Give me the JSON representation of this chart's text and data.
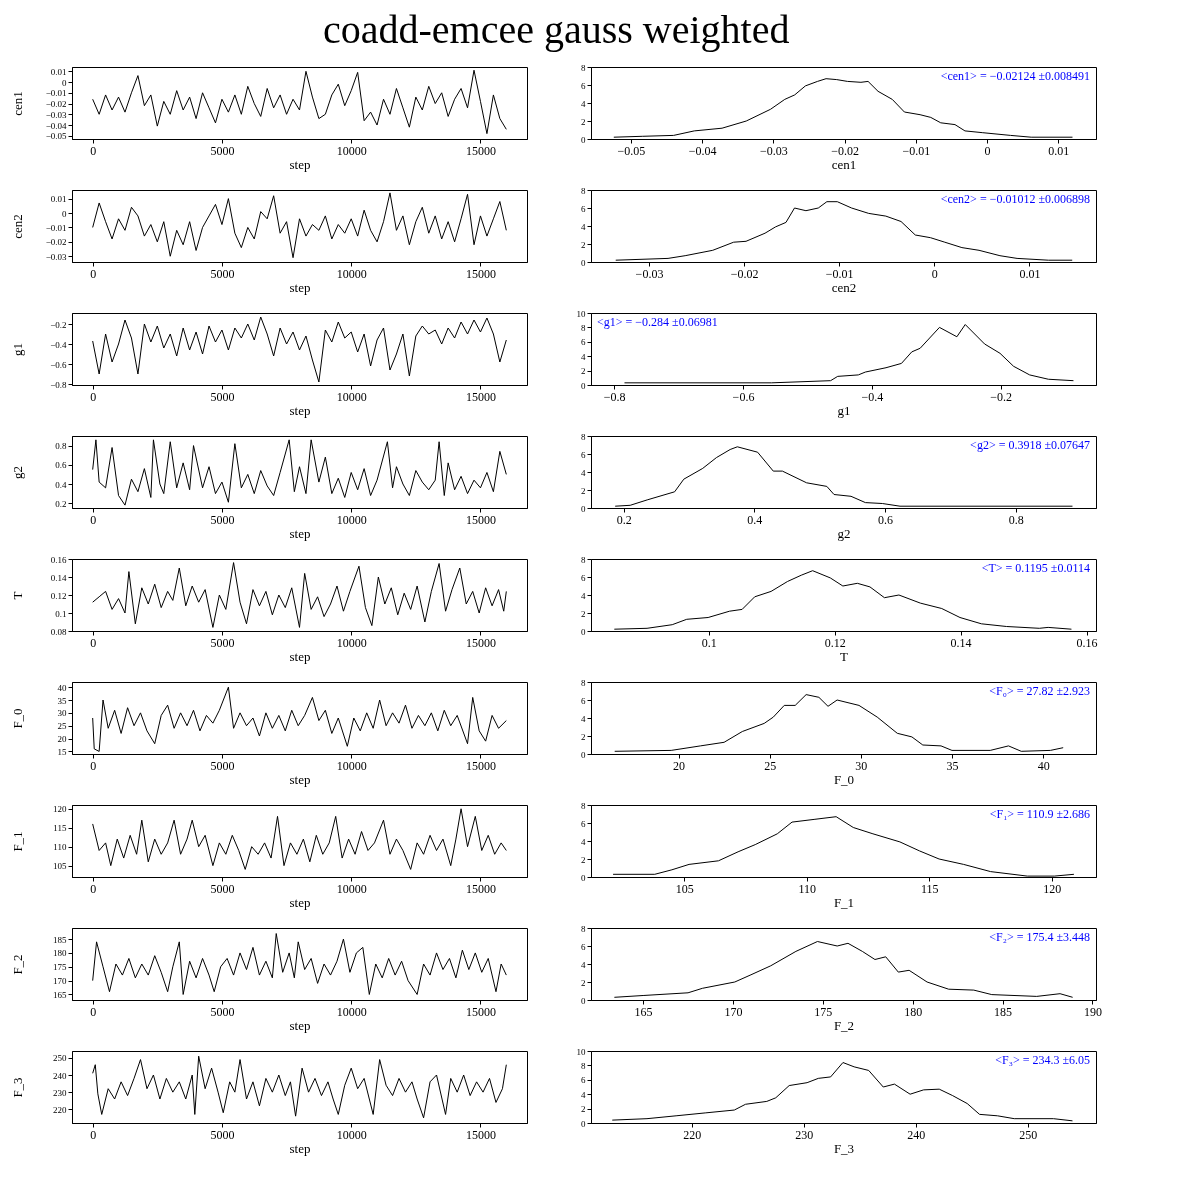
{
  "chart_data": [
    {
      "type": "line",
      "title": "coadd-emcee gauss weighted",
      "xlabel": "step",
      "ylabel": "cen1",
      "color": "#000000",
      "xlim": [
        -800,
        16800
      ],
      "xticks": [
        0,
        5000,
        10000,
        15000
      ],
      "ylim": [
        -0.053,
        0.014
      ],
      "yticks": [
        -0.05,
        -0.04,
        -0.03,
        -0.02,
        -0.01,
        0,
        0.01
      ],
      "x": [
        0,
        250,
        500,
        750,
        1000,
        1250,
        1500,
        1750,
        2000,
        2250,
        2500,
        2750,
        3000,
        3250,
        3500,
        3750,
        4000,
        4250,
        4500,
        4750,
        5000,
        5250,
        5500,
        5750,
        6000,
        6250,
        6500,
        6750,
        7000,
        7250,
        7500,
        7750,
        8000,
        8250,
        8500,
        8750,
        9000,
        9250,
        9500,
        9750,
        10000,
        10250,
        10500,
        10750,
        11000,
        11250,
        11500,
        11750,
        12000,
        12250,
        12500,
        12750,
        13000,
        13250,
        13500,
        13750,
        14000,
        14250,
        14500,
        14750,
        15000,
        15250,
        15500,
        15750,
        16000
      ],
      "values": [
        -0.016,
        -0.03,
        -0.012,
        -0.026,
        -0.014,
        -0.028,
        -0.01,
        0.006,
        -0.022,
        -0.012,
        -0.041,
        -0.018,
        -0.03,
        -0.008,
        -0.026,
        -0.014,
        -0.034,
        -0.01,
        -0.024,
        -0.038,
        -0.016,
        -0.028,
        -0.012,
        -0.03,
        -0.004,
        -0.02,
        -0.032,
        -0.006,
        -0.024,
        -0.012,
        -0.03,
        -0.016,
        -0.026,
        0.01,
        -0.014,
        -0.034,
        -0.03,
        -0.012,
        -0.002,
        -0.022,
        -0.008,
        0.009,
        -0.036,
        -0.028,
        -0.04,
        -0.016,
        -0.03,
        -0.006,
        -0.024,
        -0.042,
        -0.014,
        -0.026,
        -0.004,
        -0.02,
        -0.01,
        -0.032,
        -0.016,
        -0.006,
        -0.024,
        0.011,
        -0.018,
        -0.048,
        -0.012,
        -0.034,
        -0.044
      ]
    },
    {
      "type": "line",
      "xlabel": "cen1",
      "color": "#000000",
      "xlim": [
        -0.0556,
        0.0153
      ],
      "xticks": [
        -0.05,
        -0.04,
        -0.03,
        -0.02,
        -0.01,
        0,
        0.01
      ],
      "ylim": [
        0,
        8
      ],
      "yticks": [
        0,
        2,
        4,
        6,
        8
      ],
      "annotations": [
        "<cen1> = −0.02124 ±0.008491"
      ],
      "x": [
        -0.0524,
        -0.0484,
        -0.044,
        -0.0411,
        -0.0372,
        -0.0338,
        -0.0304,
        -0.0284,
        -0.027,
        -0.0255,
        -0.0238,
        -0.0226,
        -0.0211,
        -0.0196,
        -0.0177,
        -0.0167,
        -0.0153,
        -0.0133,
        -0.0116,
        -0.0094,
        -0.0079,
        -0.0065,
        -0.0045,
        -0.0031,
        -0.0006,
        0.0033,
        0.0062,
        0.012
      ],
      "values": [
        0.2,
        0.3,
        0.4,
        0.9,
        1.2,
        2.0,
        3.3,
        4.4,
        4.9,
        5.9,
        6.4,
        6.7,
        6.6,
        6.4,
        6.3,
        6.4,
        5.3,
        4.4,
        3.0,
        2.7,
        2.4,
        1.8,
        1.6,
        0.9,
        0.7,
        0.4,
        0.2,
        0.2
      ]
    },
    {
      "type": "line",
      "xlabel": "step",
      "ylabel": "cen2",
      "color": "#000000",
      "xlim": [
        -800,
        16800
      ],
      "xticks": [
        0,
        5000,
        10000,
        15000
      ],
      "ylim": [
        -0.034,
        0.016
      ],
      "yticks": [
        -0.03,
        -0.02,
        -0.01,
        0,
        0.01
      ],
      "x": [
        0,
        250,
        500,
        750,
        1000,
        1250,
        1500,
        1750,
        2000,
        2250,
        2500,
        2750,
        3000,
        3250,
        3500,
        3750,
        4000,
        4250,
        4500,
        4750,
        5000,
        5250,
        5500,
        5750,
        6000,
        6250,
        6500,
        6750,
        7000,
        7250,
        7500,
        7750,
        8000,
        8250,
        8500,
        8750,
        9000,
        9250,
        9500,
        9750,
        10000,
        10250,
        10500,
        10750,
        11000,
        11250,
        11500,
        11750,
        12000,
        12250,
        12500,
        12750,
        13000,
        13250,
        13500,
        13750,
        14000,
        14250,
        14500,
        14750,
        15000,
        15250,
        15500,
        15750,
        16000
      ],
      "values": [
        -0.01,
        0.007,
        -0.006,
        -0.018,
        -0.004,
        -0.012,
        0.004,
        -0.002,
        -0.016,
        -0.008,
        -0.02,
        -0.006,
        -0.03,
        -0.012,
        -0.022,
        -0.006,
        -0.026,
        -0.01,
        -0.002,
        0.006,
        -0.008,
        0.01,
        -0.014,
        -0.024,
        -0.01,
        -0.018,
        0.001,
        -0.004,
        0.012,
        -0.014,
        -0.006,
        -0.031,
        -0.004,
        -0.016,
        -0.008,
        -0.012,
        -0.002,
        -0.018,
        -0.008,
        -0.014,
        -0.004,
        -0.016,
        0.002,
        -0.012,
        -0.02,
        -0.006,
        0.014,
        -0.012,
        -0.002,
        -0.022,
        -0.006,
        0.004,
        -0.014,
        -0.002,
        -0.018,
        -0.006,
        -0.02,
        -0.004,
        0.013,
        -0.022,
        -0.002,
        -0.016,
        -0.004,
        0.008,
        -0.012
      ]
    },
    {
      "type": "line",
      "xlabel": "cen2",
      "color": "#000000",
      "xlim": [
        -0.0361,
        0.017
      ],
      "xticks": [
        -0.03,
        -0.02,
        -0.01,
        0,
        0.01
      ],
      "ylim": [
        0,
        8
      ],
      "yticks": [
        0,
        2,
        4,
        6,
        8
      ],
      "annotations": [
        "<cen2> = −0.01012 ±0.006898"
      ],
      "x": [
        -0.0335,
        -0.028,
        -0.0262,
        -0.0233,
        -0.0211,
        -0.0198,
        -0.0178,
        -0.0167,
        -0.0156,
        -0.0147,
        -0.0135,
        -0.0122,
        -0.0113,
        -0.0102,
        -0.0087,
        -0.0069,
        -0.0051,
        -0.0035,
        -0.002,
        -0.0004,
        0.0011,
        0.0029,
        0.0047,
        0.0069,
        0.0087,
        0.012,
        0.0145
      ],
      "values": [
        0.2,
        0.4,
        0.7,
        1.3,
        2.2,
        2.3,
        3.2,
        3.9,
        4.4,
        6.0,
        5.7,
        6.0,
        6.7,
        6.7,
        6.0,
        5.4,
        5.1,
        4.5,
        3.0,
        2.7,
        2.2,
        1.6,
        1.3,
        0.7,
        0.4,
        0.2,
        0.2
      ]
    },
    {
      "type": "line",
      "xlabel": "step",
      "ylabel": "g1",
      "color": "#000000",
      "xlim": [
        -800,
        16800
      ],
      "xticks": [
        0,
        5000,
        10000,
        15000
      ],
      "ylim": [
        -0.81,
        -0.09
      ],
      "yticks": [
        -0.8,
        -0.6,
        -0.4,
        -0.2
      ],
      "x": [
        0,
        250,
        500,
        750,
        1000,
        1250,
        1500,
        1750,
        2000,
        2250,
        2500,
        2750,
        3000,
        3250,
        3500,
        3750,
        4000,
        4250,
        4500,
        4750,
        5000,
        5250,
        5500,
        5750,
        6000,
        6250,
        6500,
        6750,
        7000,
        7250,
        7500,
        7750,
        8000,
        8250,
        8500,
        8750,
        9000,
        9250,
        9500,
        9750,
        10000,
        10250,
        10500,
        10750,
        11000,
        11250,
        11500,
        11750,
        12000,
        12250,
        12500,
        12750,
        13000,
        13250,
        13500,
        13750,
        14000,
        14250,
        14500,
        14750,
        15000,
        15250,
        15500,
        15750,
        16000
      ],
      "values": [
        -0.37,
        -0.7,
        -0.3,
        -0.58,
        -0.4,
        -0.16,
        -0.34,
        -0.7,
        -0.2,
        -0.38,
        -0.22,
        -0.44,
        -0.3,
        -0.52,
        -0.24,
        -0.46,
        -0.28,
        -0.5,
        -0.22,
        -0.38,
        -0.26,
        -0.46,
        -0.24,
        -0.34,
        -0.2,
        -0.36,
        -0.13,
        -0.3,
        -0.52,
        -0.24,
        -0.4,
        -0.28,
        -0.46,
        -0.32,
        -0.56,
        -0.78,
        -0.26,
        -0.38,
        -0.18,
        -0.34,
        -0.28,
        -0.48,
        -0.3,
        -0.62,
        -0.36,
        -0.24,
        -0.66,
        -0.5,
        -0.3,
        -0.72,
        -0.32,
        -0.22,
        -0.3,
        -0.26,
        -0.4,
        -0.24,
        -0.34,
        -0.18,
        -0.3,
        -0.16,
        -0.28,
        -0.14,
        -0.3,
        -0.58,
        -0.36
      ]
    },
    {
      "type": "line",
      "xlabel": "g1",
      "color": "#000000",
      "xlim": [
        -0.836,
        -0.052
      ],
      "xticks": [
        -0.8,
        -0.6,
        -0.4,
        -0.2
      ],
      "ylim": [
        0,
        10
      ],
      "yticks": [
        0,
        2,
        4,
        6,
        8,
        10
      ],
      "annotations": [
        "<g1> = −0.284 ±0.06981"
      ],
      "x": [
        -0.784,
        -0.556,
        -0.464,
        -0.453,
        -0.421,
        -0.41,
        -0.378,
        -0.354,
        -0.338,
        -0.325,
        -0.295,
        -0.268,
        -0.255,
        -0.225,
        -0.201,
        -0.18,
        -0.155,
        -0.126,
        -0.087
      ],
      "values": [
        0.3,
        0.3,
        0.6,
        1.2,
        1.4,
        1.8,
        2.4,
        3.0,
        4.6,
        5.1,
        8.0,
        6.7,
        8.4,
        5.7,
        4.4,
        2.6,
        1.4,
        0.8,
        0.6
      ]
    },
    {
      "type": "line",
      "xlabel": "step",
      "ylabel": "g2",
      "color": "#000000",
      "xlim": [
        -800,
        16800
      ],
      "xticks": [
        0,
        5000,
        10000,
        15000
      ],
      "ylim": [
        0.15,
        0.9
      ],
      "yticks": [
        0.2,
        0.4,
        0.6,
        0.8
      ],
      "x": [
        0,
        125,
        250,
        500,
        750,
        1000,
        1250,
        1500,
        1750,
        2000,
        2250,
        2350,
        2600,
        2750,
        3000,
        3250,
        3500,
        3750,
        3900,
        4250,
        4500,
        4750,
        5000,
        5250,
        5500,
        5750,
        6000,
        6250,
        6500,
        6750,
        7000,
        7250,
        7600,
        7800,
        8000,
        8250,
        8450,
        8750,
        9000,
        9250,
        9500,
        9750,
        10000,
        10250,
        10500,
        10750,
        11000,
        11400,
        11600,
        11750,
        12000,
        12250,
        12500,
        12750,
        13000,
        13250,
        13400,
        13600,
        13750,
        14000,
        14250,
        14500,
        14750,
        15000,
        15250,
        15500,
        15750,
        16000
      ],
      "values": [
        0.55,
        0.86,
        0.42,
        0.36,
        0.78,
        0.28,
        0.18,
        0.45,
        0.32,
        0.56,
        0.26,
        0.86,
        0.4,
        0.3,
        0.84,
        0.36,
        0.62,
        0.34,
        0.8,
        0.36,
        0.58,
        0.3,
        0.42,
        0.21,
        0.82,
        0.36,
        0.5,
        0.3,
        0.54,
        0.38,
        0.28,
        0.52,
        0.86,
        0.32,
        0.58,
        0.3,
        0.86,
        0.42,
        0.68,
        0.3,
        0.46,
        0.26,
        0.52,
        0.34,
        0.56,
        0.28,
        0.44,
        0.84,
        0.36,
        0.58,
        0.4,
        0.28,
        0.54,
        0.42,
        0.34,
        0.44,
        0.84,
        0.28,
        0.62,
        0.34,
        0.48,
        0.3,
        0.44,
        0.36,
        0.52,
        0.32,
        0.74,
        0.5
      ]
    },
    {
      "type": "line",
      "xlabel": "g2",
      "color": "#000000",
      "xlim": [
        0.15,
        0.923
      ],
      "xticks": [
        0.2,
        0.4,
        0.6,
        0.8
      ],
      "ylim": [
        0,
        8
      ],
      "yticks": [
        0,
        2,
        4,
        6,
        8
      ],
      "annotations": [
        "<g2> = 0.3918 ±0.07647"
      ],
      "x": [
        0.187,
        0.21,
        0.236,
        0.278,
        0.292,
        0.321,
        0.342,
        0.363,
        0.374,
        0.405,
        0.429,
        0.443,
        0.48,
        0.511,
        0.522,
        0.548,
        0.57,
        0.596,
        0.623,
        0.887
      ],
      "values": [
        0.2,
        0.3,
        0.9,
        1.8,
        3.2,
        4.4,
        5.6,
        6.5,
        6.8,
        6.2,
        4.1,
        4.1,
        2.8,
        2.4,
        1.5,
        1.3,
        0.6,
        0.5,
        0.2,
        0.2
      ]
    },
    {
      "type": "line",
      "xlabel": "step",
      "ylabel": "T",
      "color": "#000000",
      "xlim": [
        -800,
        16800
      ],
      "xticks": [
        0,
        5000,
        10000,
        15000
      ],
      "ylim": [
        0.08,
        0.16
      ],
      "yticks": [
        0.08,
        0.1,
        0.12,
        0.14,
        0.16
      ],
      "x": [
        0,
        250,
        500,
        750,
        1000,
        1250,
        1400,
        1650,
        1900,
        2150,
        2400,
        2650,
        2900,
        3100,
        3350,
        3600,
        3850,
        4100,
        4350,
        4650,
        4900,
        5150,
        5450,
        5700,
        5950,
        6200,
        6450,
        6700,
        6950,
        7200,
        7450,
        7700,
        8000,
        8200,
        8450,
        8700,
        8950,
        9200,
        9450,
        9700,
        9950,
        10300,
        10550,
        10800,
        11050,
        11300,
        11550,
        11800,
        12050,
        12300,
        12550,
        12850,
        13100,
        13400,
        13650,
        13900,
        14200,
        14450,
        14700,
        14950,
        15200,
        15450,
        15700,
        15900,
        16000
      ],
      "values": [
        0.112,
        0.118,
        0.124,
        0.104,
        0.116,
        0.1,
        0.146,
        0.088,
        0.128,
        0.11,
        0.132,
        0.106,
        0.124,
        0.114,
        0.15,
        0.108,
        0.13,
        0.112,
        0.126,
        0.084,
        0.12,
        0.104,
        0.156,
        0.112,
        0.088,
        0.126,
        0.108,
        0.124,
        0.098,
        0.12,
        0.106,
        0.128,
        0.084,
        0.144,
        0.104,
        0.118,
        0.096,
        0.11,
        0.13,
        0.102,
        0.124,
        0.152,
        0.106,
        0.086,
        0.14,
        0.11,
        0.128,
        0.098,
        0.122,
        0.104,
        0.13,
        0.09,
        0.124,
        0.155,
        0.102,
        0.126,
        0.15,
        0.11,
        0.124,
        0.1,
        0.128,
        0.108,
        0.126,
        0.102,
        0.124
      ]
    },
    {
      "type": "line",
      "xlabel": "T",
      "color": "#000000",
      "xlim": [
        0.0813,
        0.1615
      ],
      "xticks": [
        0.1,
        0.12,
        0.14,
        0.16
      ],
      "ylim": [
        0,
        8
      ],
      "yticks": [
        0,
        2,
        4,
        6,
        8
      ],
      "annotations": [
        "<T> = 0.1195 ±0.0114"
      ],
      "x": [
        0.085,
        0.0902,
        0.0942,
        0.0965,
        0.0999,
        0.1033,
        0.1053,
        0.1073,
        0.1099,
        0.1125,
        0.1147,
        0.1165,
        0.1193,
        0.1213,
        0.1236,
        0.1256,
        0.1279,
        0.1302,
        0.1336,
        0.137,
        0.1399,
        0.1433,
        0.1473,
        0.1525,
        0.1539,
        0.1576
      ],
      "values": [
        0.2,
        0.3,
        0.7,
        1.3,
        1.5,
        2.2,
        2.4,
        3.8,
        4.4,
        5.5,
        6.2,
        6.7,
        5.9,
        5.0,
        5.3,
        4.9,
        3.7,
        4.0,
        3.1,
        2.5,
        1.5,
        0.8,
        0.5,
        0.3,
        0.4,
        0.2
      ]
    },
    {
      "type": "line",
      "xlabel": "step",
      "ylabel": "F_0",
      "color": "#000000",
      "xlim": [
        -800,
        16800
      ],
      "xticks": [
        0,
        5000,
        10000,
        15000
      ],
      "ylim": [
        14,
        42
      ],
      "yticks": [
        15,
        20,
        25,
        30,
        35,
        40
      ],
      "x": [
        0,
        60,
        250,
        400,
        600,
        850,
        1100,
        1350,
        1600,
        1850,
        2100,
        2400,
        2650,
        2900,
        3150,
        3400,
        3650,
        3900,
        4150,
        4400,
        4650,
        4900,
        5250,
        5450,
        5700,
        5950,
        6200,
        6450,
        6700,
        6950,
        7200,
        7450,
        7700,
        7950,
        8200,
        8500,
        8750,
        9000,
        9250,
        9500,
        9850,
        10100,
        10350,
        10600,
        10850,
        11100,
        11350,
        11600,
        11850,
        12100,
        12350,
        12600,
        12850,
        13100,
        13350,
        13600,
        13850,
        14100,
        14500,
        14700,
        14950,
        15200,
        15450,
        15700,
        16000
      ],
      "values": [
        28,
        16,
        15,
        35,
        24,
        31,
        22,
        32,
        25,
        30,
        23,
        18,
        29,
        33,
        24,
        30,
        25,
        31,
        23,
        29,
        26,
        31,
        40,
        24,
        30,
        25,
        28,
        21,
        30,
        24,
        29,
        23,
        31,
        25,
        29,
        36,
        27,
        31,
        22,
        28,
        17,
        28,
        23,
        30,
        24,
        35,
        25,
        30,
        26,
        33,
        24,
        29,
        25,
        30,
        23,
        31,
        25,
        29,
        18,
        36,
        23,
        19,
        29,
        24,
        27
      ]
    },
    {
      "type": "line",
      "xlabel": "F_0",
      "color": "#000000",
      "xlim": [
        15.2,
        42.9
      ],
      "xticks": [
        20,
        25,
        30,
        35,
        40
      ],
      "ylim": [
        0,
        8
      ],
      "yticks": [
        0,
        2,
        4,
        6,
        8
      ],
      "annotations": [
        "<F₀> = 27.82 ±2.923"
      ],
      "x": [
        16.5,
        19.6,
        21.2,
        22.5,
        23.5,
        24.7,
        25.2,
        25.8,
        26.4,
        27.0,
        27.7,
        28.2,
        28.7,
        29.9,
        30.9,
        32.0,
        32.8,
        33.4,
        34.4,
        35.0,
        37.1,
        38.1,
        38.8,
        40.4,
        41.1
      ],
      "values": [
        0.3,
        0.4,
        0.9,
        1.3,
        2.5,
        3.4,
        4.1,
        5.4,
        5.4,
        6.6,
        6.3,
        5.3,
        6.0,
        5.4,
        4.1,
        2.3,
        1.9,
        1.0,
        0.9,
        0.4,
        0.4,
        0.9,
        0.3,
        0.4,
        0.7
      ]
    },
    {
      "type": "line",
      "xlabel": "step",
      "ylabel": "F_1",
      "color": "#000000",
      "xlim": [
        -800,
        16800
      ],
      "xticks": [
        0,
        5000,
        10000,
        15000
      ],
      "ylim": [
        102,
        121
      ],
      "yticks": [
        105,
        110,
        115,
        120
      ],
      "x": [
        0,
        250,
        500,
        700,
        950,
        1200,
        1450,
        1700,
        1900,
        2150,
        2400,
        2650,
        2900,
        3150,
        3400,
        3650,
        3850,
        4100,
        4350,
        4650,
        4900,
        5150,
        5400,
        5650,
        5900,
        6150,
        6400,
        6650,
        6900,
        7150,
        7400,
        7650,
        7900,
        8150,
        8400,
        8650,
        8900,
        9150,
        9400,
        9650,
        9900,
        10150,
        10400,
        10650,
        10900,
        11250,
        11500,
        11750,
        12000,
        12300,
        12550,
        12800,
        13050,
        13300,
        13550,
        13850,
        14050,
        14250,
        14500,
        14800,
        15050,
        15300,
        15550,
        15800,
        16000
      ],
      "values": [
        116,
        109,
        111,
        105,
        112,
        107,
        113,
        108,
        117,
        106,
        112,
        108,
        111,
        117,
        108,
        112,
        117,
        110,
        113,
        105,
        111,
        108,
        113,
        109,
        104,
        110,
        108,
        111,
        107,
        118,
        105,
        111,
        108,
        112,
        106,
        113,
        108,
        111,
        118,
        107,
        112,
        108,
        114,
        109,
        111,
        117,
        108,
        112,
        109,
        104,
        111,
        108,
        113,
        109,
        112,
        105,
        112,
        120,
        110,
        118,
        109,
        113,
        108,
        111,
        109
      ]
    },
    {
      "type": "line",
      "xlabel": "F_1",
      "color": "#000000",
      "xlim": [
        101.2,
        121.8
      ],
      "xticks": [
        105,
        110,
        115,
        120
      ],
      "ylim": [
        0,
        8
      ],
      "yticks": [
        0,
        2,
        4,
        6,
        8
      ],
      "annotations": [
        "<F₁> = 110.9 ±2.686"
      ],
      "x": [
        102.1,
        103.8,
        104.5,
        105.2,
        106.4,
        107.2,
        107.9,
        108.8,
        109.4,
        110.3,
        111.2,
        111.9,
        112.7,
        113.8,
        114.6,
        115.4,
        116.4,
        117.5,
        119.0,
        120.1,
        120.9
      ],
      "values": [
        0.3,
        0.3,
        0.8,
        1.4,
        1.8,
        2.8,
        3.6,
        4.8,
        6.1,
        6.4,
        6.7,
        5.5,
        4.8,
        3.9,
        2.9,
        2.0,
        1.4,
        0.6,
        0.1,
        0.1,
        0.3
      ]
    },
    {
      "type": "line",
      "xlabel": "step",
      "ylabel": "F_2",
      "color": "#000000",
      "xlim": [
        -800,
        16800
      ],
      "xticks": [
        0,
        5000,
        10000,
        15000
      ],
      "ylim": [
        163,
        189
      ],
      "yticks": [
        165,
        170,
        175,
        180,
        185
      ],
      "x": [
        0,
        150,
        400,
        650,
        900,
        1150,
        1400,
        1650,
        1900,
        2150,
        2400,
        2650,
        2900,
        3100,
        3350,
        3500,
        3750,
        4000,
        4250,
        4500,
        4700,
        4950,
        5200,
        5450,
        5700,
        5950,
        6200,
        6450,
        6700,
        6950,
        7100,
        7350,
        7600,
        7800,
        7950,
        8200,
        8450,
        8700,
        8950,
        9200,
        9450,
        9700,
        9950,
        10200,
        10450,
        10700,
        10950,
        11200,
        11450,
        11700,
        11950,
        12200,
        12550,
        12800,
        13050,
        13300,
        13550,
        13800,
        14050,
        14300,
        14550,
        14800,
        15050,
        15300,
        15600,
        15800,
        16000
      ],
      "values": [
        170,
        184,
        175,
        166,
        176,
        172,
        178,
        171,
        176,
        172,
        179,
        173,
        166,
        175,
        184,
        165,
        177,
        171,
        178,
        172,
        166,
        175,
        178,
        172,
        180,
        174,
        182,
        172,
        177,
        171,
        187,
        173,
        180,
        171,
        184,
        174,
        178,
        169,
        176,
        172,
        177,
        185,
        173,
        180,
        182,
        165,
        176,
        171,
        178,
        172,
        177,
        170,
        165,
        176,
        172,
        180,
        174,
        178,
        171,
        181,
        174,
        180,
        173,
        178,
        166,
        176,
        172
      ]
    },
    {
      "type": "line",
      "xlabel": "F_2",
      "color": "#000000",
      "xlim": [
        162.1,
        190.2
      ],
      "xticks": [
        165,
        170,
        175,
        180,
        185,
        190
      ],
      "ylim": [
        0,
        8
      ],
      "yticks": [
        0,
        2,
        4,
        6,
        8
      ],
      "annotations": [
        "<F₂> = 175.4 ±3.448"
      ],
      "x": [
        163.4,
        165.0,
        167.5,
        168.3,
        170.1,
        171.0,
        172.1,
        173.5,
        174.7,
        175.8,
        176.4,
        177.2,
        177.9,
        178.5,
        179.2,
        179.8,
        180.8,
        182.0,
        183.4,
        184.4,
        186.9,
        188.2,
        188.9
      ],
      "values": [
        0.3,
        0.5,
        0.8,
        1.3,
        2.0,
        2.8,
        3.8,
        5.4,
        6.5,
        6.0,
        6.3,
        5.4,
        4.5,
        4.8,
        3.1,
        3.3,
        2.0,
        1.2,
        1.1,
        0.6,
        0.4,
        0.7,
        0.3
      ]
    },
    {
      "type": "line",
      "xlabel": "step",
      "ylabel": "F_3",
      "color": "#000000",
      "xlim": [
        -800,
        16800
      ],
      "xticks": [
        0,
        5000,
        10000,
        15000
      ],
      "ylim": [
        212,
        254
      ],
      "yticks": [
        220,
        230,
        240,
        250
      ],
      "x": [
        0,
        100,
        200,
        350,
        600,
        850,
        1100,
        1350,
        1600,
        1850,
        2100,
        2350,
        2600,
        2850,
        3100,
        3350,
        3600,
        3850,
        3950,
        4100,
        4350,
        4600,
        4850,
        5050,
        5300,
        5500,
        5700,
        5950,
        6200,
        6450,
        6700,
        6950,
        7200,
        7450,
        7650,
        7850,
        8100,
        8350,
        8600,
        8850,
        9100,
        9300,
        9500,
        9750,
        10000,
        10250,
        10500,
        10850,
        11100,
        11350,
        11600,
        11850,
        12100,
        12350,
        12550,
        12800,
        13050,
        13300,
        13650,
        13850,
        14100,
        14350,
        14600,
        14850,
        15100,
        15350,
        15600,
        15850,
        16000
      ],
      "values": [
        241,
        246,
        229,
        217,
        232,
        226,
        236,
        228,
        238,
        249,
        232,
        240,
        226,
        238,
        230,
        236,
        226,
        240,
        217,
        251,
        232,
        244,
        230,
        218,
        236,
        230,
        249,
        226,
        236,
        222,
        238,
        230,
        240,
        228,
        236,
        216,
        244,
        230,
        238,
        228,
        236,
        226,
        217,
        234,
        244,
        232,
        238,
        217,
        249,
        234,
        228,
        238,
        230,
        236,
        226,
        215,
        236,
        240,
        217,
        238,
        230,
        240,
        228,
        236,
        230,
        238,
        224,
        232,
        246
      ]
    },
    {
      "type": "line",
      "xlabel": "F_3",
      "color": "#000000",
      "xlim": [
        211,
        256.1
      ],
      "xticks": [
        220,
        230,
        240,
        250
      ],
      "ylim": [
        0,
        10
      ],
      "yticks": [
        0,
        2,
        4,
        6,
        8,
        10
      ],
      "annotations": [
        "<F₃> = 234.3 ±6.05"
      ],
      "x": [
        212.9,
        216.0,
        218.6,
        221.2,
        223.8,
        224.8,
        226.7,
        227.5,
        228.7,
        230.3,
        231.3,
        232.4,
        233.5,
        234.5,
        235.8,
        237.1,
        238.1,
        239.5,
        240.7,
        242.1,
        243.3,
        244.6,
        245.7,
        247.3,
        248.8,
        252.3,
        254.0
      ],
      "values": [
        0.4,
        0.6,
        1.0,
        1.4,
        1.8,
        2.6,
        3.0,
        3.5,
        5.2,
        5.6,
        6.2,
        6.4,
        8.4,
        7.8,
        7.3,
        5.0,
        5.4,
        4.0,
        4.6,
        4.7,
        3.8,
        2.7,
        1.2,
        1.0,
        0.6,
        0.6,
        0.3
      ]
    }
  ]
}
